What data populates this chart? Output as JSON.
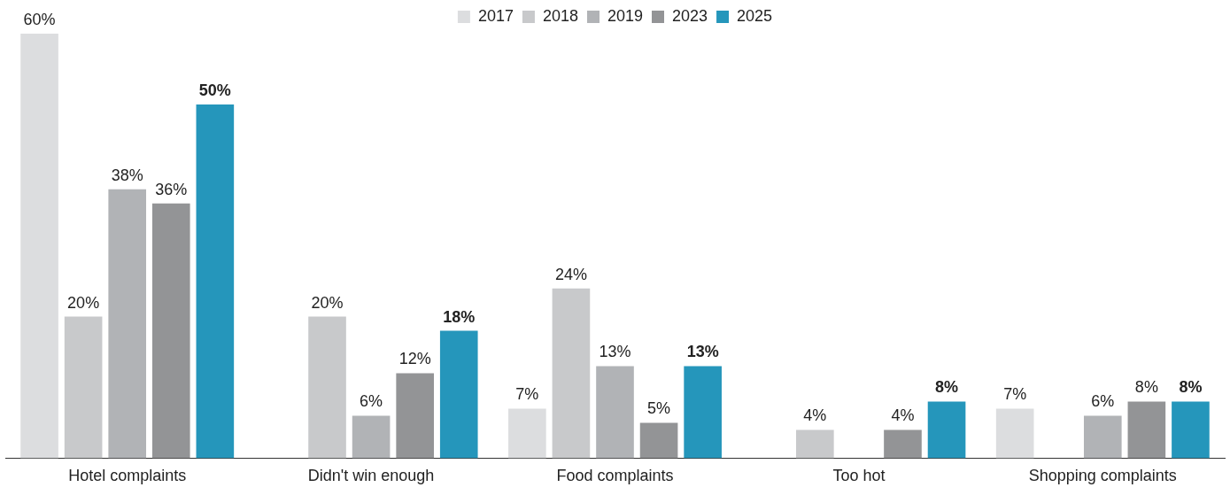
{
  "chart_data": {
    "type": "bar",
    "categories": [
      "Hotel complaints",
      "Didn't win enough",
      "Food complaints",
      "Too hot",
      "Shopping complaints"
    ],
    "series": [
      {
        "name": "2017",
        "color": "#dcdddf",
        "values": [
          60,
          null,
          7,
          null,
          7
        ],
        "value_labels": [
          "60%",
          null,
          "7%",
          null,
          "7%"
        ]
      },
      {
        "name": "2018",
        "color": "#c8c9cb",
        "values": [
          20,
          20,
          24,
          4,
          null
        ],
        "value_labels": [
          "20%",
          "20%",
          "24%",
          "4%",
          null
        ]
      },
      {
        "name": "2019",
        "color": "#b1b3b6",
        "values": [
          38,
          6,
          13,
          null,
          6
        ],
        "value_labels": [
          "38%",
          "6%",
          "13%",
          null,
          "6%"
        ]
      },
      {
        "name": "2023",
        "color": "#939496",
        "values": [
          36,
          12,
          5,
          4,
          8
        ],
        "value_labels": [
          "36%",
          "12%",
          "5%",
          "4%",
          "8%"
        ]
      },
      {
        "name": "2025",
        "color": "#2596bb",
        "values": [
          50,
          18,
          13,
          8,
          8
        ],
        "value_labels": [
          "50%",
          "18%",
          "13%",
          "8%",
          "8%"
        ]
      }
    ],
    "ylim": [
      0,
      60
    ],
    "legend": "top",
    "grid": false
  }
}
